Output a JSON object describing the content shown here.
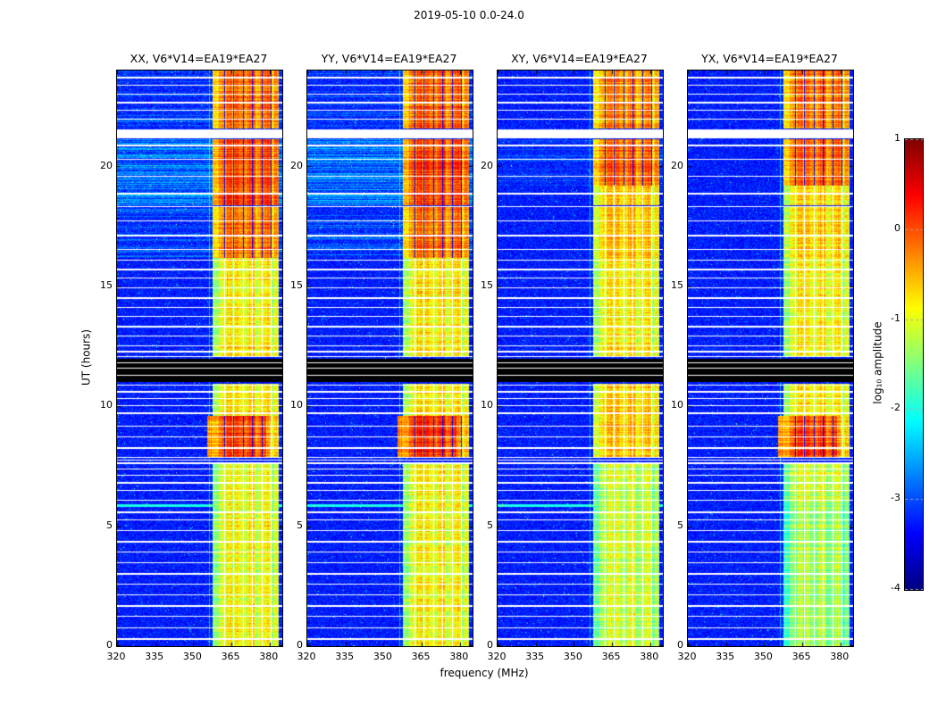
{
  "chart_data": {
    "type": "heatmap",
    "title": "2019-05-10 0.0-24.0",
    "xlabel": "frequency (MHz)",
    "ylabel": "UT (hours)",
    "colorbar_label": "log₁₀ amplitude",
    "colormap": "jet",
    "x_range_mhz": [
      320,
      385
    ],
    "y_range_hours": [
      0,
      24
    ],
    "value_range_log10": [
      -4,
      1
    ],
    "x_ticks": [
      "320",
      "335",
      "350",
      "365",
      "380"
    ],
    "y_ticks": [
      "0",
      "5",
      "10",
      "15",
      "20"
    ],
    "colorbar_ticks": [
      "1",
      "0",
      "-1",
      "-2",
      "-3",
      "-4"
    ],
    "rfi_band_mhz": [
      357.5,
      383.5
    ],
    "band_profile": [
      [
        360,
        -0.25
      ],
      [
        363,
        0.05
      ],
      [
        365.5,
        0.3
      ],
      [
        366.2,
        -0.15
      ],
      [
        369,
        0.2
      ],
      [
        371,
        0.0
      ],
      [
        374,
        0.3
      ],
      [
        375,
        -0.05
      ],
      [
        378,
        0.15
      ],
      [
        380.8,
        0.35
      ],
      [
        382,
        -0.15
      ],
      [
        383.5,
        0.05
      ]
    ],
    "line_channels_mhz": [
      362.2,
      365.9,
      369.6,
      373.3,
      377.0,
      380.7
    ],
    "pre_band_line_mhz": 356.3,
    "flagged_rows_hours": [
      0.35,
      0.8,
      1.25,
      1.7,
      2.15,
      2.6,
      3.05,
      3.5,
      3.95,
      4.4,
      4.85,
      5.3,
      5.62,
      6.12,
      6.5,
      6.85,
      7.15,
      7.4,
      7.65,
      7.78,
      7.9,
      8.3,
      8.75,
      9.2,
      9.75,
      10.05,
      10.35,
      10.65,
      10.9,
      12.1,
      12.3,
      12.55,
      12.95,
      13.35,
      13.75,
      14.15,
      14.55,
      14.95,
      15.35,
      15.75,
      16.1,
      16.55,
      17.15,
      17.75,
      18.35,
      18.9,
      19.6,
      20.3,
      20.9,
      22.0,
      22.35,
      22.7,
      23.05,
      23.4,
      23.75
    ],
    "black_band_hours": [
      11.05,
      12.0
    ],
    "black_band_white_lines_hours": [
      11.3,
      11.6,
      11.85
    ],
    "white_band_hours": [
      21.2,
      21.55
    ],
    "panels": [
      {
        "title": "XX, V6*V14=EA19*EA27",
        "seed": 11,
        "band_segments": [
          {
            "h0": 0,
            "h1": 7.6,
            "level": -1.15
          },
          {
            "h0": 7.9,
            "h1": 9.6,
            "level": -0.15,
            "wide": true
          },
          {
            "h0": 9.6,
            "h1": 10.95,
            "level": -1.0
          },
          {
            "h0": 12.05,
            "h1": 16.2,
            "level": -1.05
          },
          {
            "h0": 16.2,
            "h1": 18.3,
            "level": -0.45
          },
          {
            "h0": 18.4,
            "h1": 21.15,
            "level": -0.25
          },
          {
            "h0": 21.6,
            "h1": 24,
            "level": -0.4
          }
        ],
        "bg_streaks": [
          {
            "h0": 16.2,
            "h1": 18.3,
            "boost": 0.05,
            "amp": 0.35,
            "prob": 0.35
          },
          {
            "h0": 18.4,
            "h1": 21.15,
            "boost": 0.15,
            "amp": 0.5,
            "prob": 0.55
          },
          {
            "h0": 21.6,
            "h1": 24,
            "boost": 0.05,
            "amp": 0.3,
            "prob": 0.3
          }
        ],
        "cyan_rows": [
          5.85
        ]
      },
      {
        "title": "YY, V6*V14=EA19*EA27",
        "seed": 22,
        "band_segments": [
          {
            "h0": 0,
            "h1": 7.6,
            "level": -1.1
          },
          {
            "h0": 7.9,
            "h1": 9.6,
            "level": -0.1,
            "wide": true
          },
          {
            "h0": 9.6,
            "h1": 10.95,
            "level": -1.0
          },
          {
            "h0": 12.05,
            "h1": 16.2,
            "level": -1.0
          },
          {
            "h0": 16.2,
            "h1": 18.3,
            "level": -0.4
          },
          {
            "h0": 18.4,
            "h1": 21.15,
            "level": -0.2
          },
          {
            "h0": 21.6,
            "h1": 24,
            "level": -0.35
          }
        ],
        "bg_streaks": [
          {
            "h0": 16.2,
            "h1": 18.3,
            "boost": 0.05,
            "amp": 0.35,
            "prob": 0.35
          },
          {
            "h0": 18.4,
            "h1": 21.15,
            "boost": 0.15,
            "amp": 0.5,
            "prob": 0.55
          },
          {
            "h0": 21.6,
            "h1": 24,
            "boost": 0.05,
            "amp": 0.3,
            "prob": 0.3
          }
        ],
        "cyan_rows": [
          5.85
        ]
      },
      {
        "title": "XY, V6*V14=EA19*EA27",
        "seed": 33,
        "band_segments": [
          {
            "h0": 0,
            "h1": 7.6,
            "level": -1.35
          },
          {
            "h0": 7.9,
            "h1": 10.95,
            "level": -0.85
          },
          {
            "h0": 12.05,
            "h1": 16.2,
            "level": -1.05
          },
          {
            "h0": 16.2,
            "h1": 18.3,
            "level": -0.8
          },
          {
            "h0": 18.4,
            "h1": 19.2,
            "level": -0.9
          },
          {
            "h0": 19.2,
            "h1": 21.15,
            "level": -0.35
          },
          {
            "h0": 21.6,
            "h1": 24,
            "level": -0.5
          }
        ],
        "bg_streaks": [
          {
            "h0": 19.2,
            "h1": 21.15,
            "boost": 0.05,
            "amp": 0.2,
            "prob": 0.25
          }
        ],
        "cyan_rows": [
          5.85
        ]
      },
      {
        "title": "YX, V6*V14=EA19*EA27",
        "seed": 44,
        "band_segments": [
          {
            "h0": 0,
            "h1": 6.0,
            "level": -1.55
          },
          {
            "h0": 6.0,
            "h1": 7.6,
            "level": -1.3
          },
          {
            "h0": 7.9,
            "h1": 9.6,
            "level": -0.2,
            "wide": true
          },
          {
            "h0": 9.6,
            "h1": 10.95,
            "level": -1.05
          },
          {
            "h0": 12.05,
            "h1": 16.2,
            "level": -1.1
          },
          {
            "h0": 16.2,
            "h1": 18.3,
            "level": -0.9
          },
          {
            "h0": 18.4,
            "h1": 19.2,
            "level": -0.95
          },
          {
            "h0": 19.2,
            "h1": 21.15,
            "level": -0.4
          },
          {
            "h0": 21.6,
            "h1": 24,
            "level": -0.45
          }
        ],
        "bg_streaks": [],
        "cyan_rows": []
      }
    ]
  }
}
